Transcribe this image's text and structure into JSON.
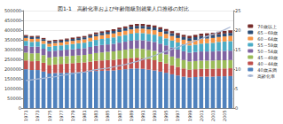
{
  "chart_data": {
    "type": "bar",
    "title": "図1-1　高齢化率および年齢階級別就業人口推移の対比",
    "categories": [
      "1971",
      null,
      "1973",
      null,
      "1975",
      null,
      "1977",
      null,
      "1979",
      null,
      "1981",
      null,
      "1983",
      null,
      "1985",
      null,
      "1987",
      null,
      "1989",
      null,
      "1991",
      null,
      "1993",
      null,
      "1995",
      null,
      "1997",
      null,
      "1999",
      null,
      "2001",
      null,
      "2003",
      null,
      "2005",
      null
    ],
    "stacked": true,
    "grid": true,
    "legend": "right",
    "ylim": [
      0,
      500000
    ],
    "yticks": [
      0,
      50000,
      100000,
      150000,
      200000,
      250000,
      300000,
      350000,
      400000,
      450000,
      500000
    ],
    "y2lim": [
      0,
      25
    ],
    "y2ticks": [
      0,
      5,
      10,
      15,
      20,
      25
    ],
    "series": [
      {
        "name": "40歳未満",
        "color": "#4f81bd",
        "values": [
          200000,
          196000,
          196000,
          188000,
          178000,
          180000,
          181000,
          182000,
          183000,
          184000,
          185000,
          188000,
          191000,
          192000,
          193000,
          194000,
          197000,
          200000,
          203000,
          204000,
          202000,
          198000,
          194000,
          188000,
          182000,
          174000,
          168000,
          162000,
          158000,
          160000,
          162000,
          162000,
          162000,
          164000,
          164000,
          165000
        ]
      },
      {
        "name": "40～44歳",
        "color": "#c0504d",
        "values": [
          45000,
          45000,
          46000,
          45000,
          44000,
          45000,
          46000,
          47000,
          48000,
          49000,
          50000,
          51000,
          52000,
          53000,
          54000,
          54000,
          55000,
          55000,
          55000,
          55000,
          54000,
          53000,
          52000,
          50000,
          48000,
          46000,
          44000,
          42000,
          40000,
          40000,
          40000,
          40000,
          40000,
          40000,
          40000,
          40000
        ]
      },
      {
        "name": "45～49歳",
        "color": "#9bbb59",
        "values": [
          40000,
          40000,
          40000,
          39000,
          38000,
          38000,
          38000,
          38000,
          38000,
          38000,
          38000,
          39000,
          40000,
          41000,
          42000,
          43000,
          44000,
          45000,
          46000,
          47000,
          48000,
          48000,
          48000,
          47000,
          46000,
          45000,
          44000,
          43000,
          42000,
          42000,
          42000,
          42000,
          42000,
          42000,
          42000,
          42000
        ]
      },
      {
        "name": "50～54歳",
        "color": "#8064a2",
        "values": [
          35000,
          34000,
          34000,
          33000,
          32000,
          32000,
          32000,
          33000,
          33000,
          34000,
          35000,
          36000,
          37000,
          38000,
          38000,
          39000,
          40000,
          41000,
          42000,
          43000,
          44000,
          45000,
          46000,
          46000,
          46000,
          46000,
          45000,
          45000,
          45000,
          46000,
          47000,
          47000,
          47000,
          48000,
          48000,
          48000
        ]
      },
      {
        "name": "55～59歳",
        "color": "#4bacc6",
        "values": [
          25000,
          25000,
          25000,
          25000,
          24000,
          25000,
          25000,
          26000,
          27000,
          28000,
          28000,
          29000,
          30000,
          31000,
          32000,
          33000,
          34000,
          35000,
          36000,
          37000,
          37000,
          37000,
          37000,
          37000,
          36000,
          36000,
          36000,
          36000,
          37000,
          38000,
          40000,
          42000,
          44000,
          46000,
          48000,
          49000
        ]
      },
      {
        "name": "60～64歳",
        "color": "#f79646",
        "values": [
          15000,
          15000,
          15000,
          15000,
          15000,
          15000,
          15000,
          16000,
          16000,
          16000,
          17000,
          18000,
          19000,
          19000,
          20000,
          20000,
          21000,
          21000,
          22000,
          22000,
          23000,
          23000,
          23000,
          23000,
          23000,
          23000,
          23000,
          23000,
          23000,
          24000,
          24000,
          24000,
          25000,
          25000,
          26000,
          27000
        ]
      },
      {
        "name": "65～69歳",
        "color": "#2c4d75",
        "values": [
          9000,
          9000,
          9000,
          9000,
          9000,
          9000,
          9000,
          9000,
          10000,
          10000,
          10000,
          11000,
          11000,
          12000,
          12000,
          13000,
          13000,
          13000,
          14000,
          14000,
          14000,
          14000,
          14000,
          14000,
          14000,
          14000,
          14000,
          14000,
          14000,
          14000,
          15000,
          15000,
          15000,
          15000,
          15000,
          15000
        ]
      },
      {
        "name": "70歳以上",
        "color": "#772c2a",
        "values": [
          6000,
          6000,
          6000,
          6000,
          6000,
          6000,
          6000,
          6000,
          7000,
          7000,
          7000,
          7000,
          8000,
          8000,
          8000,
          9000,
          9000,
          9000,
          10000,
          10000,
          10000,
          10000,
          10000,
          10000,
          11000,
          11000,
          11000,
          11000,
          12000,
          12000,
          12000,
          12000,
          12000,
          12000,
          13000,
          13000
        ]
      },
      {
        "name": "高齢化率",
        "type": "line",
        "axis": "y2",
        "color": "#a9b8d4",
        "marker": "none",
        "values": [
          7.1,
          7.3,
          7.5,
          7.7,
          7.9,
          8.1,
          8.4,
          8.6,
          8.9,
          9.1,
          9.3,
          9.6,
          9.9,
          10.1,
          10.3,
          10.6,
          10.9,
          11.2,
          11.6,
          12.0,
          12.5,
          13.0,
          13.5,
          14.1,
          14.6,
          15.1,
          15.7,
          16.2,
          16.7,
          17.3,
          17.8,
          18.4,
          19.0,
          19.5,
          20.1,
          20.8
        ]
      }
    ]
  }
}
